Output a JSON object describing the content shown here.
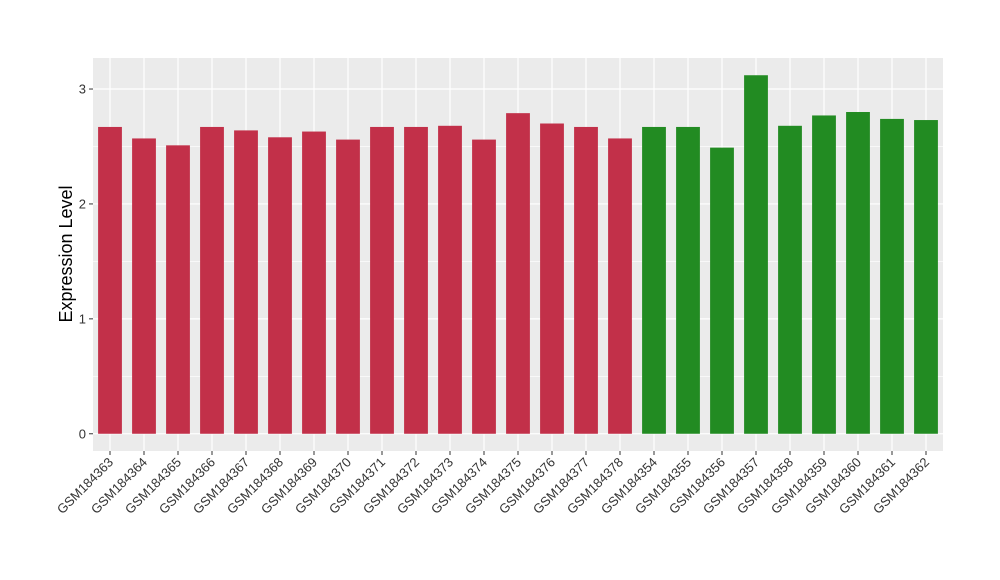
{
  "chart_data": {
    "type": "bar",
    "title": "",
    "xlabel": "",
    "ylabel": "Expression Level",
    "ylim": [
      -0.15,
      3.27
    ],
    "yticks": [
      0,
      1,
      2,
      3
    ],
    "grid": true,
    "legend": "none",
    "categories": [
      "GSM184363",
      "GSM184364",
      "GSM184365",
      "GSM184366",
      "GSM184367",
      "GSM184368",
      "GSM184369",
      "GSM184370",
      "GSM184371",
      "GSM184372",
      "GSM184373",
      "GSM184374",
      "GSM184375",
      "GSM184376",
      "GSM184377",
      "GSM184378",
      "GSM184354",
      "GSM184355",
      "GSM184356",
      "GSM184357",
      "GSM184358",
      "GSM184359",
      "GSM184360",
      "GSM184361",
      "GSM184362"
    ],
    "values": [
      2.67,
      2.57,
      2.51,
      2.67,
      2.64,
      2.58,
      2.63,
      2.56,
      2.67,
      2.67,
      2.68,
      2.56,
      2.79,
      2.7,
      2.67,
      2.57,
      2.67,
      2.67,
      2.49,
      3.12,
      2.68,
      2.77,
      2.8,
      2.74,
      2.73
    ],
    "colors": [
      "#c23049",
      "#c23049",
      "#c23049",
      "#c23049",
      "#c23049",
      "#c23049",
      "#c23049",
      "#c23049",
      "#c23049",
      "#c23049",
      "#c23049",
      "#c23049",
      "#c23049",
      "#c23049",
      "#c23049",
      "#c23049",
      "#228b22",
      "#228b22",
      "#228b22",
      "#228b22",
      "#228b22",
      "#228b22",
      "#228b22",
      "#228b22",
      "#228b22"
    ],
    "panel_background": "#ebebeb",
    "gridline_color": "#ffffff"
  }
}
